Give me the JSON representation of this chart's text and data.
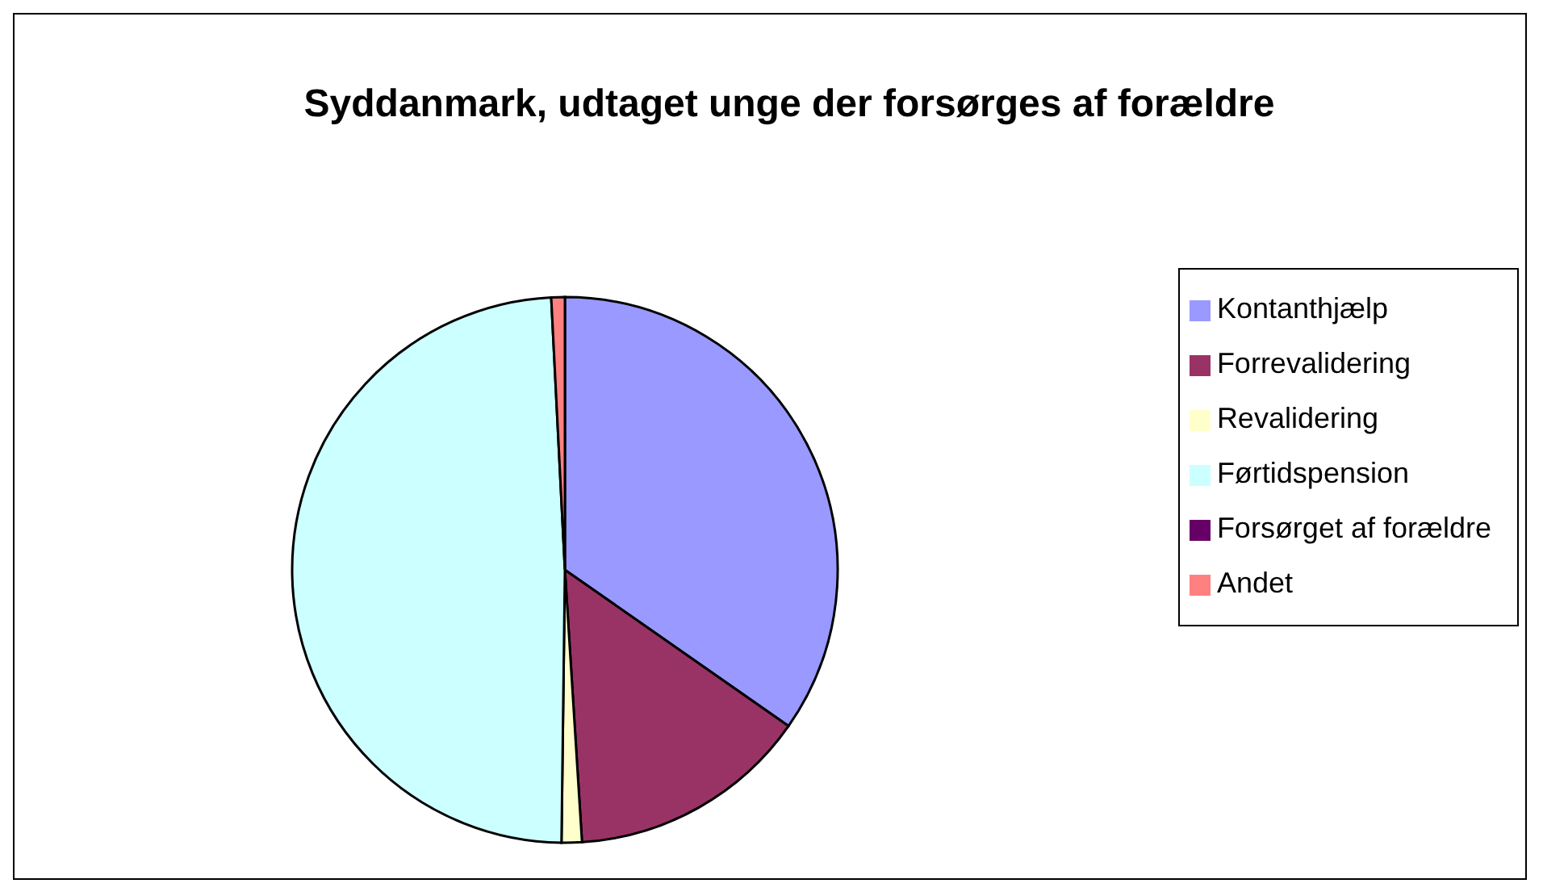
{
  "chart_data": {
    "type": "pie",
    "title": "Syddanmark, udtaget unge der forsørges af forældre",
    "categories": [
      "Kontanthjælp",
      "Forrevalidering",
      "Revalidering",
      "Førtidspension",
      "Forsørget af forældre",
      "Andet"
    ],
    "values": [
      34.7,
      14.3,
      1.2,
      49.0,
      0,
      0.8
    ],
    "colors": [
      "#9999ff",
      "#993366",
      "#ffffcc",
      "#ccffff",
      "#660066",
      "#ff8080"
    ],
    "legend": "right"
  }
}
